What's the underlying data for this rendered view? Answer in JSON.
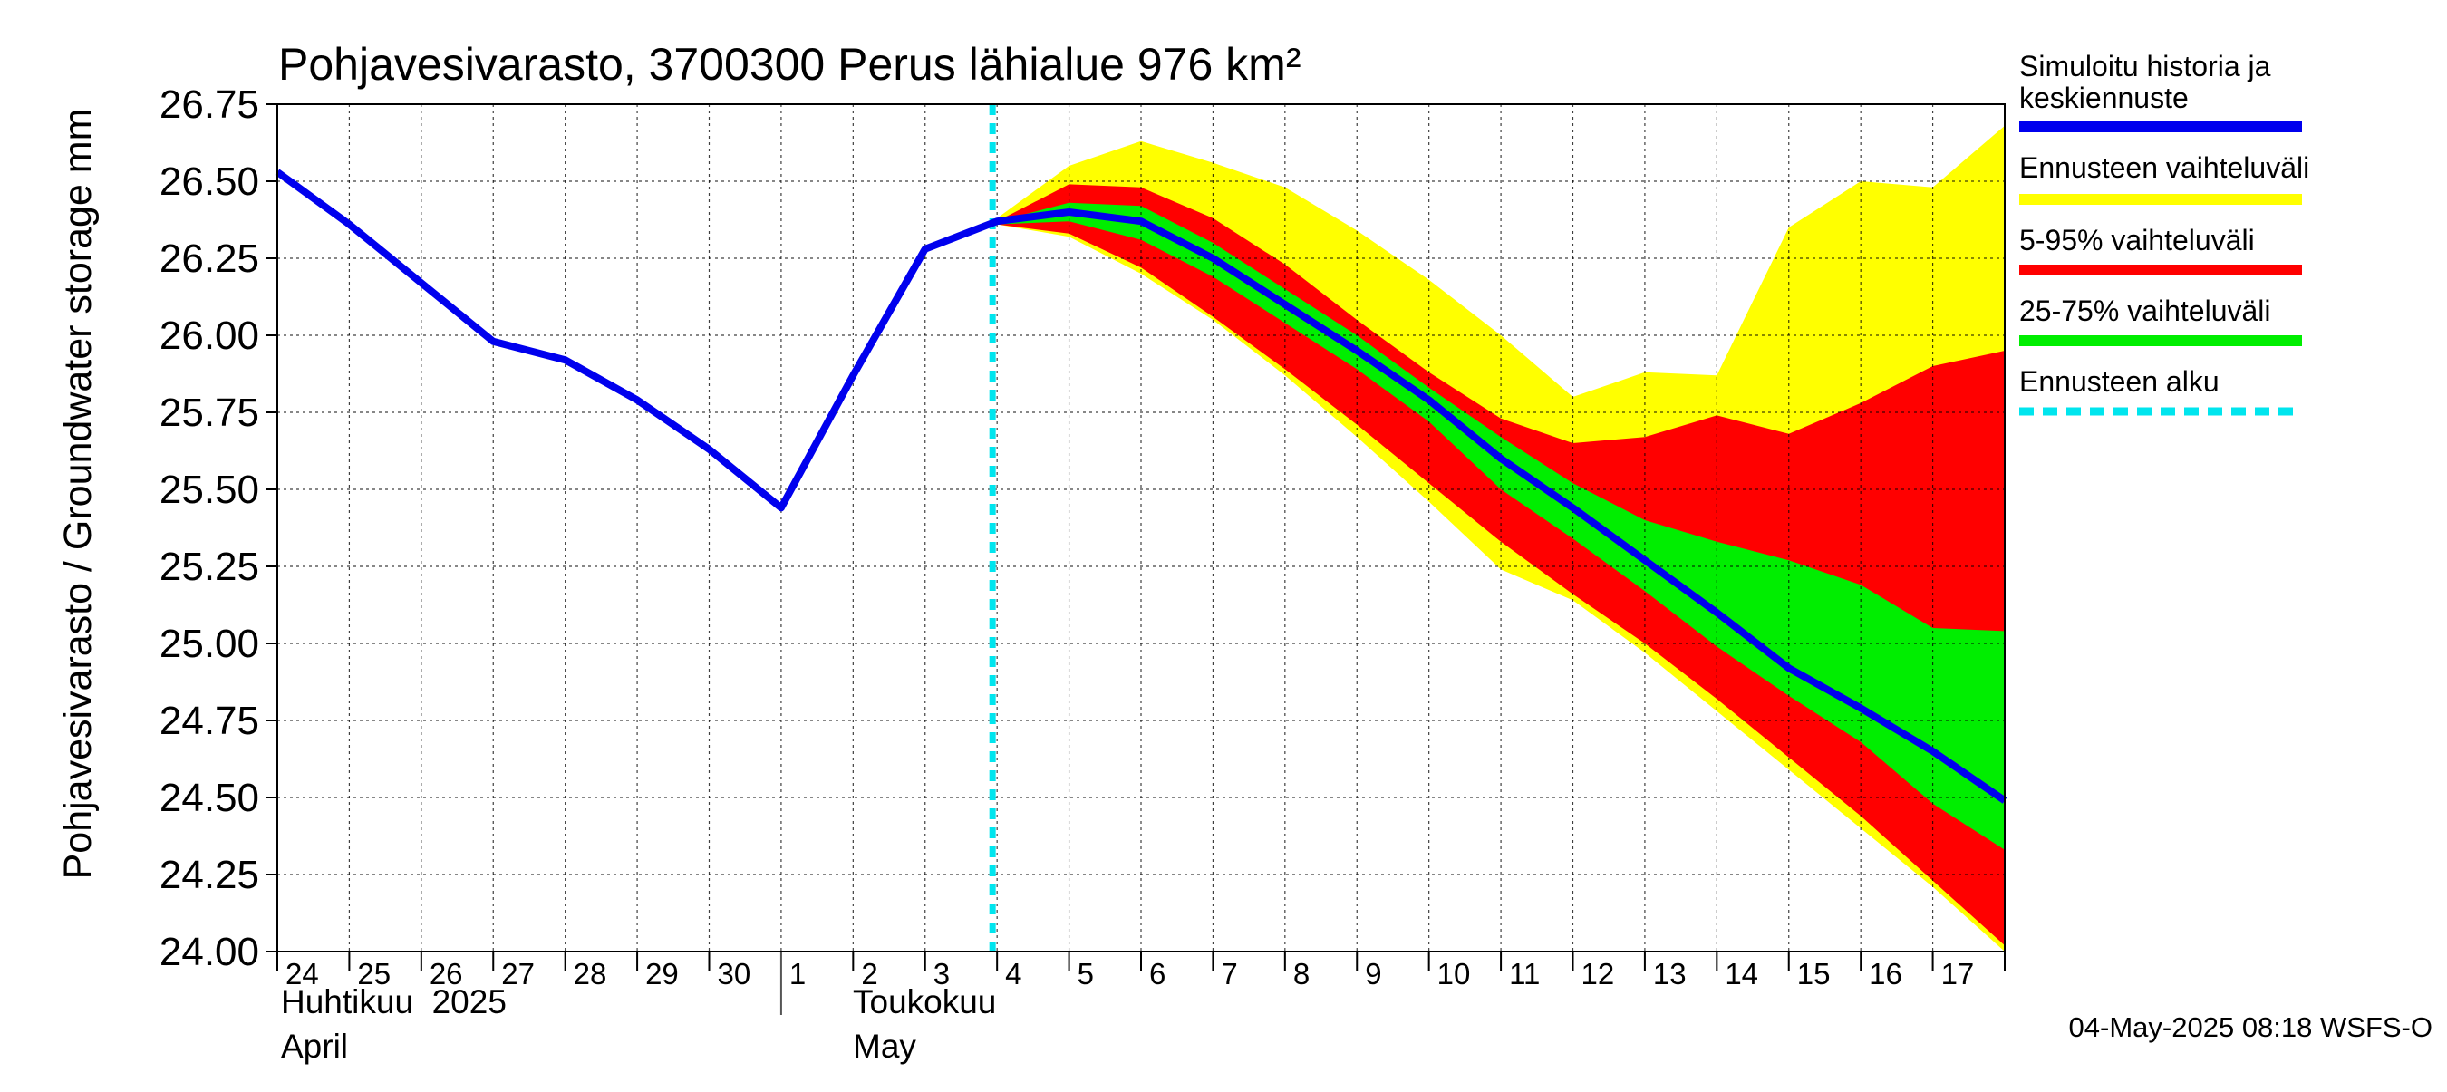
{
  "chart_data": {
    "type": "area",
    "title": "Pohjavesivarasto, 3700300 Perus lähialue 976 km²",
    "ylabel": "Pohjavesivarasto / Groundwater storage   mm",
    "xlabel": "",
    "ylim": [
      24.0,
      26.75
    ],
    "yticks": [
      "24.00",
      "24.25",
      "24.50",
      "24.75",
      "25.00",
      "25.25",
      "25.50",
      "25.75",
      "26.00",
      "26.25",
      "26.50",
      "26.75"
    ],
    "grid": true,
    "x_day_labels": [
      "24",
      "25",
      "26",
      "27",
      "28",
      "29",
      "30",
      "1",
      "2",
      "3",
      "4",
      "5",
      "6",
      "7",
      "8",
      "9",
      "10",
      "11",
      "12",
      "13",
      "14",
      "15",
      "16",
      "17"
    ],
    "month_labels": [
      {
        "fi": "Huhtikuu  2025",
        "en": "April"
      },
      {
        "fi": "Toukokuu",
        "en": "May"
      }
    ],
    "forecast_start_x": 10,
    "series": [
      {
        "name": "Simuloitu historia ja keskiennuste",
        "kind": "line",
        "color": "#0000ee",
        "x": [
          0,
          1,
          2,
          3,
          4,
          5,
          6,
          7,
          8,
          9,
          10,
          11,
          12,
          13,
          14,
          15,
          16,
          17,
          18,
          19,
          20,
          21,
          22,
          23,
          24
        ],
        "y": [
          26.53,
          26.36,
          26.17,
          25.98,
          25.92,
          25.79,
          25.63,
          25.44,
          25.87,
          26.28,
          26.37,
          26.4,
          26.37,
          26.25,
          26.1,
          25.95,
          25.79,
          25.6,
          25.44,
          25.27,
          25.1,
          24.92,
          24.79,
          24.65,
          24.49
        ]
      },
      {
        "name": "Ennusteen vaihteluväli",
        "kind": "band",
        "color": "#ffff00",
        "x": [
          10,
          11,
          12,
          13,
          14,
          15,
          16,
          17,
          18,
          19,
          20,
          21,
          22,
          23,
          24
        ],
        "upper": [
          26.38,
          26.55,
          26.63,
          26.56,
          26.48,
          26.34,
          26.18,
          26.0,
          25.8,
          25.88,
          25.87,
          26.35,
          26.5,
          26.48,
          26.68
        ],
        "lower": [
          26.36,
          26.32,
          26.2,
          26.05,
          25.87,
          25.67,
          25.46,
          25.24,
          25.14,
          24.97,
          24.78,
          24.59,
          24.4,
          24.21,
          24.0
        ]
      },
      {
        "name": "5-95% vaihteluväli",
        "kind": "band",
        "color": "#ff0000",
        "x": [
          10,
          11,
          12,
          13,
          14,
          15,
          16,
          17,
          18,
          19,
          20,
          21,
          22,
          23,
          24
        ],
        "upper": [
          26.37,
          26.49,
          26.48,
          26.38,
          26.23,
          26.05,
          25.88,
          25.73,
          25.65,
          25.67,
          25.74,
          25.68,
          25.78,
          25.9,
          25.95
        ],
        "lower": [
          26.36,
          26.33,
          26.22,
          26.06,
          25.89,
          25.71,
          25.52,
          25.33,
          25.16,
          25.0,
          24.82,
          24.63,
          24.44,
          24.23,
          24.02
        ]
      },
      {
        "name": "25-75% vaihteluväli",
        "kind": "band",
        "color": "#00ee00",
        "x": [
          10,
          11,
          12,
          13,
          14,
          15,
          16,
          17,
          18,
          19,
          20,
          21,
          22,
          23,
          24
        ],
        "upper": [
          26.37,
          26.43,
          26.42,
          26.3,
          26.15,
          26.0,
          25.83,
          25.67,
          25.52,
          25.4,
          25.33,
          25.27,
          25.19,
          25.05,
          25.04
        ],
        "lower": [
          26.36,
          26.37,
          26.31,
          26.19,
          26.04,
          25.89,
          25.72,
          25.5,
          25.34,
          25.17,
          24.99,
          24.83,
          24.68,
          24.48,
          24.33
        ]
      },
      {
        "name": "Ennusteen alku",
        "kind": "vline",
        "color": "#00e5ee"
      }
    ],
    "legend": [
      {
        "label": "Simuloitu historia ja keskiennuste",
        "color": "#0000ee",
        "style": "solid"
      },
      {
        "label": "Ennusteen vaihteluväli",
        "color": "#ffff00",
        "style": "solid"
      },
      {
        "label": "5-95% vaihteluväli",
        "color": "#ff0000",
        "style": "solid"
      },
      {
        "label": "25-75% vaihteluväli",
        "color": "#00ee00",
        "style": "solid"
      },
      {
        "label": "Ennusteen alku",
        "color": "#00e5ee",
        "style": "dashed"
      }
    ],
    "legend_position": "right",
    "footer": "04-May-2025 08:18 WSFS-O"
  }
}
